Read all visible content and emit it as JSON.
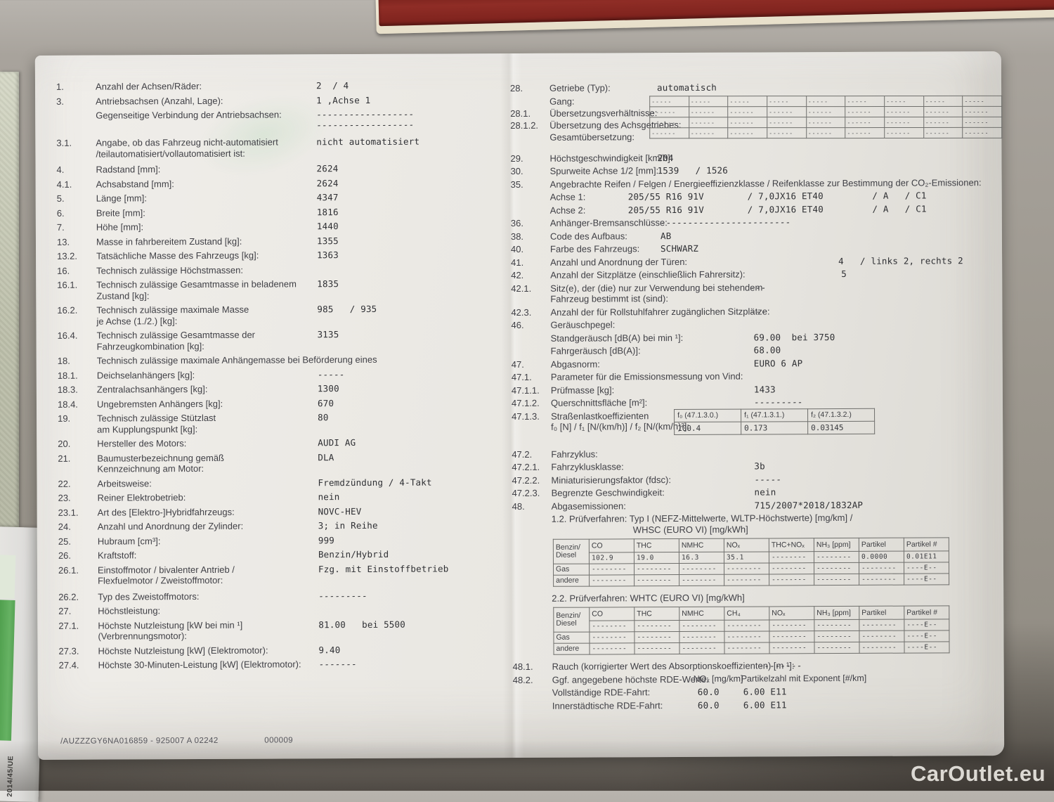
{
  "page": {
    "watermark": "CarOutlet.eu",
    "side_label": "2014/45/UE",
    "footer_code": "/AUZZZGY6NA016859 - 925007 A 02242",
    "footer_code2": "000009",
    "colors": {
      "paper": "#ebe9e4",
      "red_tray": "#8f2d26",
      "tray_border_cream": "#ebe3d0",
      "green_sheet": "#57a455",
      "table_surface": "#9d988f",
      "watermark_text": "#e9e6e1"
    }
  },
  "left": {
    "rows": [
      {
        "num": "1.",
        "label": "Anzahl der Achsen/Räder:",
        "value": "2  / 4"
      },
      {
        "num": "3.",
        "label": "Antriebsachsen (Anzahl, Lage):",
        "value": "1 ,Achse 1"
      },
      {
        "num": "",
        "label": "Gegenseitige Verbindung der Antriebsachsen:",
        "value": "------------------\n------------------",
        "h2": true
      },
      {
        "num": "3.1.",
        "label": "Angabe, ob das Fahrzeug nicht-automatisiert",
        "label2": "/teilautomatisiert/vollautomatisiert ist:",
        "value": "nicht automatisiert",
        "gap": 8
      },
      {
        "num": "4.",
        "label": "Radstand [mm]:",
        "value": "2624",
        "gap": 7
      },
      {
        "num": "4.1.",
        "label": "Achsabstand [mm]:",
        "value": "2624"
      },
      {
        "num": "5.",
        "label": "Länge [mm]:",
        "value": "4347"
      },
      {
        "num": "6.",
        "label": "Breite [mm]:",
        "value": "1816"
      },
      {
        "num": "7.",
        "label": "Höhe [mm]:",
        "value": "1440"
      },
      {
        "num": "13.",
        "label": "Masse in fahrbereitem Zustand [kg]:",
        "value": "1355"
      },
      {
        "num": "13.2.",
        "label": "Tatsächliche Masse des Fahrzeugs [kg]:",
        "value": "1363"
      },
      {
        "num": "16.",
        "label": "Technisch zulässige Höchstmassen:"
      },
      {
        "num": "16.1.",
        "label": "Technisch zulässige Gesamtmasse in beladenem",
        "label2": "Zustand [kg]:",
        "value": "1835"
      },
      {
        "num": "16.2.",
        "label": "Technisch zulässige maximale Masse",
        "label2": "je Achse (1./2.) [kg]:",
        "value": "985   / 935"
      },
      {
        "num": "16.4.",
        "label": "Technisch zulässige Gesamtmasse der",
        "label2": "Fahrzeugkombination [kg]:",
        "value": "3135"
      },
      {
        "num": "18.",
        "label": "Technisch zulässige maximale Anhängemasse bei Beförderung eines"
      },
      {
        "num": "18.1.",
        "label": "Deichselanhängers [kg]:",
        "value": "-----"
      },
      {
        "num": "18.3.",
        "label": "Zentralachsanhängers [kg]:",
        "value": "1300"
      },
      {
        "num": "18.4.",
        "label": "Ungebremsten Anhängers [kg]:",
        "value": "670"
      },
      {
        "num": "19.",
        "label": "Technisch zulässige Stützlast",
        "label2": "am Kupplungspunkt [kg]:",
        "value": "80"
      },
      {
        "num": "20.",
        "label": "Hersteller des Motors:",
        "value": "AUDI AG",
        "gap": 3
      },
      {
        "num": "21.",
        "label": "Baumusterbezeichnung gemäß",
        "label2": "Kennzeichnung am Motor:",
        "value": "DLA"
      },
      {
        "num": "22.",
        "label": "Arbeitsweise:",
        "value": "Fremdzündung / 4-Takt",
        "gap": 4
      },
      {
        "num": "23.",
        "label": "Reiner Elektrobetrieb:",
        "value": "nein"
      },
      {
        "num": "23.1.",
        "label": "Art des [Elektro-]Hybridfahrzeugs:",
        "value": "NOVC-HEV"
      },
      {
        "num": "24.",
        "label": "Anzahl und Anordnung der Zylinder:",
        "value": "3; in Reihe"
      },
      {
        "num": "25.",
        "label": "Hubraum [cm³]:",
        "value": "999"
      },
      {
        "num": "26.",
        "label": "Kraftstoff:",
        "value": "Benzin/Hybrid"
      },
      {
        "num": "26.1.",
        "label": "Einstoffmotor / bivalenter Antrieb /",
        "label2": "Flexfuelmotor / Zweistoffmotor:",
        "value": "Fzg. mit Einstoffbetrieb"
      },
      {
        "num": "26.2.",
        "label": "Typ des Zweistoffmotors:",
        "value": "---------",
        "gap": 7
      },
      {
        "num": "27.",
        "label": "Höchstleistung:",
        "gap": 4
      },
      {
        "num": "27.1.",
        "label": "Höchste Nutzleistung [kW bei min ¹]",
        "label2": "(Verbrennungsmotor):",
        "value": "81.00   bei 5500"
      },
      {
        "num": "27.3.",
        "label": "Höchste Nutzleistung [kW] (Elektromotor):",
        "value": "9.40"
      },
      {
        "num": "27.4.",
        "label": "Höchste 30-Minuten-Leistung [kW] (Elektromotor):",
        "value": "-------"
      }
    ]
  },
  "right": {
    "transmission": {
      "num": "28.",
      "label": "Getriebe (Typ):",
      "value": "automatisch",
      "vx": 209
    },
    "gear": {
      "rows": [
        {
          "num": "",
          "label": "Gang:"
        },
        {
          "num": "28.1.",
          "label": "Übersetzungsverhältnisse:"
        },
        {
          "num": "28.1.2.",
          "label": "Übersetzung des Achsgetriebes:"
        },
        {
          "num": "",
          "label": "Gesamtübersetzung:"
        }
      ],
      "cells": [
        [
          "-----",
          "-----",
          "-----",
          "-----",
          "-----",
          "-----",
          "-----",
          "-----",
          "-----"
        ],
        [
          "------",
          "------",
          "------",
          "------",
          "------",
          "------",
          "------",
          "------",
          "------"
        ],
        [
          "------",
          "------",
          "------",
          "------",
          "------",
          "------",
          "------",
          "------",
          "------"
        ],
        [
          "------",
          "------",
          "------",
          "------",
          "------",
          "------",
          "------",
          "------",
          "------"
        ]
      ]
    },
    "rows_mid": [
      {
        "num": "29.",
        "label": "Höchstgeschwindigkeit [km/h]:",
        "value": "204",
        "vx": 209
      },
      {
        "num": "30.",
        "label": "Spurweite Achse 1/2 [mm]:",
        "value": "1539   / 1526",
        "vx": 209
      },
      {
        "num": "35.",
        "label": "Angebrachte Reifen / Felgen / Energieeffizienzklasse / Reifenklasse zur Bestimmung der CO₂-Emissionen:"
      },
      {
        "num": "",
        "label": "Achse 1:",
        "value": "205/55 R16 91V        / 7,0JX16 ET40         / A   / C1",
        "vx": 167
      },
      {
        "num": "",
        "label": "Achse 2:",
        "value": "205/55 R16 91V        / 7,0JX16 ET40         / A   / C1",
        "vx": 167
      },
      {
        "num": "36.",
        "label": "Anhänger-Bremsanschlüsse:",
        "value": "------------------------",
        "vx": 213
      },
      {
        "num": "38.",
        "label": "Code des Aufbaus:",
        "value": "AB",
        "vx": 213
      },
      {
        "num": "40.",
        "label": "Farbe des Fahrzeugs:",
        "value": "SCHWARZ",
        "vx": 213
      },
      {
        "num": "41.",
        "label": "Anzahl und Anordnung der Türen:",
        "value": "4   / links 2, rechts 2",
        "vx": 466
      },
      {
        "num": "42.",
        "label": "Anzahl der Sitzplätze (einschließlich Fahrersitz):",
        "value": "5",
        "vx": 470
      },
      {
        "num": "42.1.",
        "label": "Sitz(e), der (die) nur zur Verwendung bei stehendem",
        "label2": "Fahrzeug bestimmt ist (sind):",
        "value": "---",
        "vx": 340
      },
      {
        "num": "42.3.",
        "label": "Anzahl der für Rollstuhlfahrer zugänglichen Sitzplätze:",
        "value": "---",
        "vx": 340
      },
      {
        "num": "46.",
        "label": "Geräuschpegel:"
      },
      {
        "num": "",
        "label": "Standgeräusch [dB(A) bei min ¹]:",
        "value": "69.00  bei 3750",
        "vx": 345
      },
      {
        "num": "",
        "label": "Fahrgeräusch [dB(A)]:",
        "value": "68.00",
        "vx": 345
      },
      {
        "num": "47.",
        "label": "Abgasnorm:",
        "value": "EURO 6 AP",
        "vx": 345
      },
      {
        "num": "47.1.",
        "label": "Parameter für die Emissionsmessung von Vind:"
      },
      {
        "num": "47.1.1.",
        "label": "Prüfmasse [kg]:",
        "value": "1433",
        "vx": 345
      },
      {
        "num": "47.1.2.",
        "label": "Querschnittsfläche [m²]:",
        "value": "---------",
        "vx": 345
      }
    ],
    "road_load": {
      "num": "47.1.3.",
      "label": "Straßenlastkoeffizienten",
      "label2": "f₀ [N] / f₁ [N/(km/h)] / f₂ [N/(km/h)²]:",
      "headers": [
        "f₀ (47.1.3.0.)",
        "f₁ (47.1.3.1.)",
        "f₂ (47.1.3.2.)"
      ],
      "values": [
        "100.4",
        "0.173",
        "0.03145"
      ]
    },
    "rows_mid2": [
      {
        "num": "47.2.",
        "label": "Fahrzyklus:",
        "gap": 4
      },
      {
        "num": "47.2.1.",
        "label": "Fahrzyklusklasse:",
        "value": "3b",
        "vx": 345
      },
      {
        "num": "47.2.2.",
        "label": "Miniaturisierungsfaktor (fdsc):",
        "value": "-----",
        "vx": 345
      },
      {
        "num": "47.2.3.",
        "label": "Begrenzte Geschwindigkeit:",
        "value": "nein",
        "vx": 345
      },
      {
        "num": "48.",
        "label": "Abgasemissionen:",
        "value": "715/2007*2018/1832AP",
        "vx": 345
      }
    ],
    "emissions_1": {
      "title_line1": "1.2. Prüfverfahren: Typ I (NEFZ-Mittelwerte, WLTP-Höchstwerte) [mg/km] /",
      "title_line2": "WHSC (EURO VI) [mg/kWh]",
      "col_headers": [
        "CO",
        "THC",
        "NMHC",
        "NOₓ",
        "THC+NOₓ",
        "NH₃ [ppm]",
        "Partikel",
        "Partikel #"
      ],
      "rows": [
        {
          "label": "Benzin/\nDiesel",
          "cells": [
            "102.9",
            "19.0",
            "16.3",
            "35.1",
            "--------",
            "--------",
            "0.0000",
            "0.01E11"
          ]
        },
        {
          "label": "Gas",
          "cells": [
            "--------",
            "--------",
            "--------",
            "--------",
            "--------",
            "--------",
            "--------",
            "----E--"
          ]
        },
        {
          "label": "andere",
          "cells": [
            "--------",
            "--------",
            "--------",
            "--------",
            "--------",
            "--------",
            "--------",
            "----E--"
          ]
        }
      ]
    },
    "emissions_2": {
      "title_line1": "2.2. Prüfverfahren: WHTC (EURO VI) [mg/kWh]",
      "title_line2": "",
      "col_headers": [
        "CO",
        "THC",
        "NMHC",
        "CH₄",
        "NOₓ",
        "NH₃ [ppm]",
        "Partikel",
        "Partikel #"
      ],
      "rows": [
        {
          "label": "Benzin/\nDiesel",
          "cells": [
            "--------",
            "--------",
            "--------",
            "--------",
            "--------",
            "--------",
            "--------",
            "----E--"
          ]
        },
        {
          "label": "Gas",
          "cells": [
            "--------",
            "--------",
            "--------",
            "--------",
            "--------",
            "--------",
            "--------",
            "----E--"
          ]
        },
        {
          "label": "andere",
          "cells": [
            "--------",
            "--------",
            "--------",
            "--------",
            "--------",
            "--------",
            "--------",
            "----E--"
          ]
        }
      ]
    },
    "rows_bottom": [
      {
        "num": "48.1.",
        "label": "Rauch (korrigierter Wert des Absorptionskoeffizienten) [m ¹]:",
        "value": "--------",
        "vx": 350
      },
      {
        "num": "48.2.",
        "label": "Ggf. angegebene höchste RDE-Werte:",
        "value": "NOₓ [mg/km]",
        "vx": 257,
        "value2": "Partikelzahl mit Exponent [#/km]",
        "vx2": 325,
        "sans": true
      },
      {
        "num": "",
        "label": "Vollständige RDE-Fahrt:",
        "value": "60.0",
        "vx": 263,
        "value2": "6.00 E11",
        "vx2": 328
      },
      {
        "num": "",
        "label": "Innerstädtische RDE-Fahrt:",
        "value": "60.0",
        "vx": 263,
        "value2": "6.00 E11",
        "vx2": 328
      }
    ]
  }
}
